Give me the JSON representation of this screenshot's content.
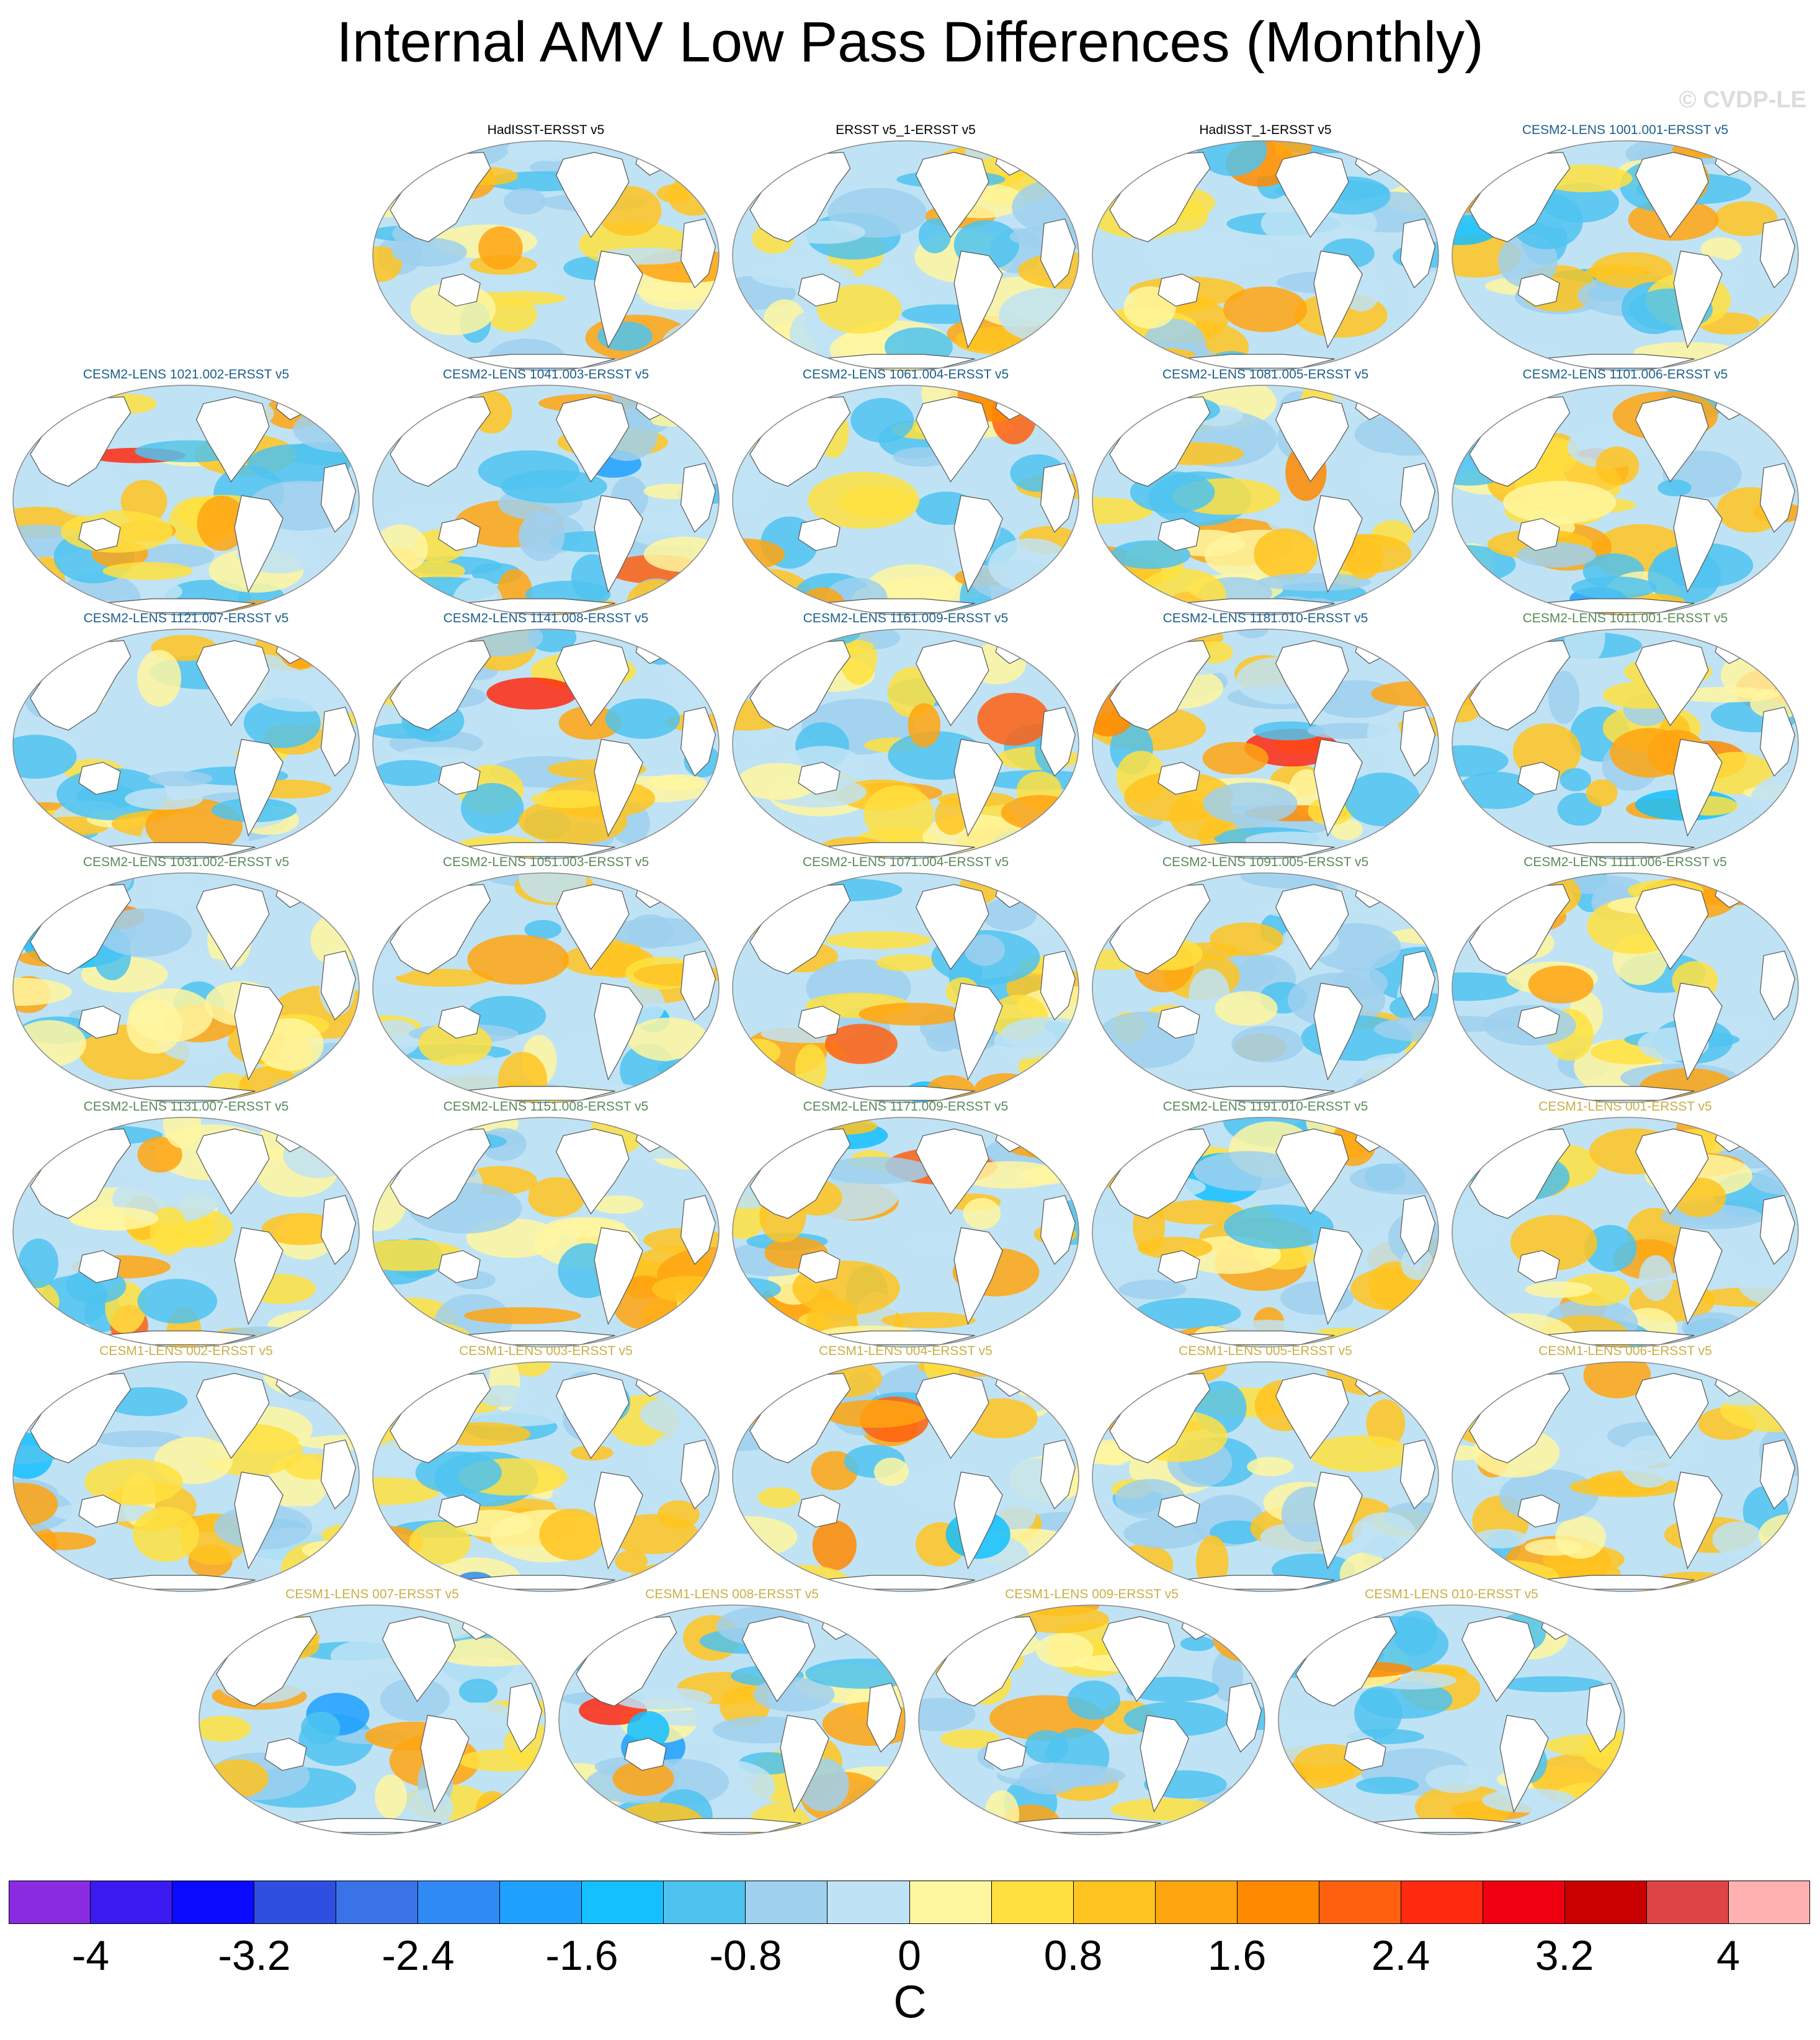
{
  "title": "Internal AMV Low Pass Differences (Monthly)",
  "copyright": "© CVDP-LE",
  "colors": {
    "obs_title": "#000000",
    "cesm2_a_title": "#1d5f8a",
    "cesm2_b_title": "#5a8a5a",
    "cesm1_title": "#c9b04a"
  },
  "panels": [
    {
      "label": "HadISST-ERSST v5",
      "group": "obs"
    },
    {
      "label": "ERSST v5_1-ERSST v5",
      "group": "obs"
    },
    {
      "label": "HadISST_1-ERSST v5",
      "group": "obs"
    },
    {
      "label": "CESM2-LENS 1001.001-ERSST v5",
      "group": "cesm2_a"
    },
    {
      "label": "CESM2-LENS 1021.002-ERSST v5",
      "group": "cesm2_a"
    },
    {
      "label": "CESM2-LENS 1041.003-ERSST v5",
      "group": "cesm2_a"
    },
    {
      "label": "CESM2-LENS 1061.004-ERSST v5",
      "group": "cesm2_a"
    },
    {
      "label": "CESM2-LENS 1081.005-ERSST v5",
      "group": "cesm2_a"
    },
    {
      "label": "CESM2-LENS 1101.006-ERSST v5",
      "group": "cesm2_a"
    },
    {
      "label": "CESM2-LENS 1121.007-ERSST v5",
      "group": "cesm2_a"
    },
    {
      "label": "CESM2-LENS 1141.008-ERSST v5",
      "group": "cesm2_a"
    },
    {
      "label": "CESM2-LENS 1161.009-ERSST v5",
      "group": "cesm2_a"
    },
    {
      "label": "CESM2-LENS 1181.010-ERSST v5",
      "group": "cesm2_a"
    },
    {
      "label": "CESM2-LENS 1011.001-ERSST v5",
      "group": "cesm2_b"
    },
    {
      "label": "CESM2-LENS 1031.002-ERSST v5",
      "group": "cesm2_b"
    },
    {
      "label": "CESM2-LENS 1051.003-ERSST v5",
      "group": "cesm2_b"
    },
    {
      "label": "CESM2-LENS 1071.004-ERSST v5",
      "group": "cesm2_b"
    },
    {
      "label": "CESM2-LENS 1091.005-ERSST v5",
      "group": "cesm2_b"
    },
    {
      "label": "CESM2-LENS 1111.006-ERSST v5",
      "group": "cesm2_b"
    },
    {
      "label": "CESM2-LENS 1131.007-ERSST v5",
      "group": "cesm2_b"
    },
    {
      "label": "CESM2-LENS 1151.008-ERSST v5",
      "group": "cesm2_b"
    },
    {
      "label": "CESM2-LENS 1171.009-ERSST v5",
      "group": "cesm2_b"
    },
    {
      "label": "CESM2-LENS 1191.010-ERSST v5",
      "group": "cesm2_b"
    },
    {
      "label": "CESM1-LENS 001-ERSST v5",
      "group": "cesm1"
    },
    {
      "label": "CESM1-LENS 002-ERSST v5",
      "group": "cesm1"
    },
    {
      "label": "CESM1-LENS 003-ERSST v5",
      "group": "cesm1"
    },
    {
      "label": "CESM1-LENS 004-ERSST v5",
      "group": "cesm1"
    },
    {
      "label": "CESM1-LENS 005-ERSST v5",
      "group": "cesm1"
    },
    {
      "label": "CESM1-LENS 006-ERSST v5",
      "group": "cesm1"
    },
    {
      "label": "CESM1-LENS 007-ERSST v5",
      "group": "cesm1"
    },
    {
      "label": "CESM1-LENS 008-ERSST v5",
      "group": "cesm1"
    },
    {
      "label": "CESM1-LENS 009-ERSST v5",
      "group": "cesm1"
    },
    {
      "label": "CESM1-LENS 010-ERSST v5",
      "group": "cesm1"
    }
  ],
  "colorbar": {
    "min": -4.4,
    "max": 4.4,
    "colors": [
      "#8a2be2",
      "#3a1af0",
      "#0a0aff",
      "#2e4fe0",
      "#3a72e8",
      "#2f8af5",
      "#1ea0ff",
      "#14c0ff",
      "#4fc3f0",
      "#9fd0ee",
      "#bfe3f5",
      "#fff6a0",
      "#ffe040",
      "#ffc420",
      "#ffa510",
      "#ff8a00",
      "#ff6010",
      "#ff2a10",
      "#ee0010",
      "#c80000",
      "#dd4444",
      "#ffb0b0"
    ],
    "ticks": [
      {
        "value": -4,
        "label": "-4"
      },
      {
        "value": -3.2,
        "label": "-3.2"
      },
      {
        "value": -2.4,
        "label": "-2.4"
      },
      {
        "value": -1.6,
        "label": "-1.6"
      },
      {
        "value": -0.8,
        "label": "-0.8"
      },
      {
        "value": 0,
        "label": "0"
      },
      {
        "value": 0.8,
        "label": "0.8"
      },
      {
        "value": 1.6,
        "label": "1.6"
      },
      {
        "value": 2.4,
        "label": "2.4"
      },
      {
        "value": 3.2,
        "label": "3.2"
      },
      {
        "value": 4,
        "label": "4"
      }
    ],
    "units": "C"
  }
}
